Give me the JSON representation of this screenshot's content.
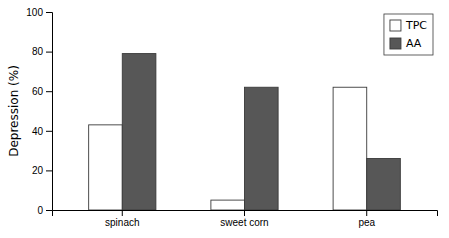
{
  "chart_data": {
    "type": "bar",
    "categories": [
      "spinach",
      "sweet corn",
      "pea"
    ],
    "series": [
      {
        "name": "TPC",
        "color": "#ffffff",
        "values": [
          43,
          5,
          62
        ]
      },
      {
        "name": "AA",
        "color": "#575757",
        "values": [
          79,
          62,
          26
        ]
      }
    ],
    "ylabel": "Depression (%)",
    "ylim": [
      0,
      100
    ],
    "yticks": [
      0,
      20,
      40,
      60,
      80,
      100
    ],
    "legend": "upper right",
    "grid": false
  }
}
